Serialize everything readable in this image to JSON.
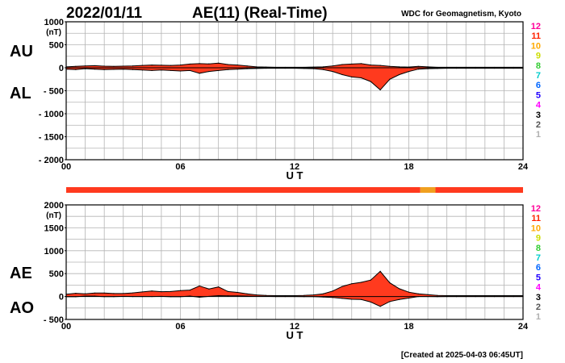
{
  "header": {
    "date": "2022/01/11",
    "title": "AE(11) (Real-Time)",
    "source": "WDC for Geomagnetism, Kyoto"
  },
  "footer": {
    "created": "[Created at 2025-04-03 06:45UT]"
  },
  "colors": {
    "fill": "#ff3a1e",
    "fill_alt": "#ffa030",
    "bar": "#ff3a1e",
    "bar_alt": "#f0a020",
    "grid": "#b4b4b4",
    "stations": [
      "#b0b0b0",
      "#555555",
      "#000000",
      "#ff00ff",
      "#2200ff",
      "#0066ff",
      "#00cccc",
      "#33cc33",
      "#ccdd00",
      "#ffaa00",
      "#ff2200",
      "#ff0099"
    ]
  },
  "station_labels": [
    "1",
    "2",
    "3",
    "4",
    "5",
    "6",
    "7",
    "8",
    "9",
    "10",
    "11",
    "12"
  ],
  "data_bar": {
    "segments": [
      {
        "from": 0,
        "to": 18.6,
        "color": "#ff3a1e"
      },
      {
        "from": 18.6,
        "to": 19.4,
        "color": "#f0a020"
      },
      {
        "from": 19.4,
        "to": 24,
        "color": "#ff3a1e"
      }
    ]
  },
  "chart_data": [
    {
      "type": "area",
      "id": "top",
      "xlabel": "U T",
      "ylabel_unit": "(nT)",
      "upper_label": "AU",
      "lower_label": "AL",
      "xlim": [
        0,
        24
      ],
      "ylim": [
        -2000,
        1000
      ],
      "xticks": [
        0,
        6,
        12,
        18,
        24
      ],
      "xticklabels": [
        "00",
        "06",
        "12",
        "18",
        "24"
      ],
      "yticks": [
        1000,
        500,
        0,
        -500,
        -1000,
        -1500,
        -2000
      ],
      "yticklabels": [
        "1000",
        "500",
        "0",
        "- 500",
        "- 1000",
        "- 1500",
        "- 2000"
      ],
      "grid": true,
      "series": [
        {
          "name": "AU",
          "x": [
            0,
            0.5,
            1,
            1.5,
            2,
            2.5,
            3,
            3.5,
            4,
            4.5,
            5,
            5.5,
            6,
            6.5,
            7,
            7.5,
            8,
            8.5,
            9,
            9.5,
            10,
            10.5,
            11,
            11.5,
            12,
            12.5,
            13,
            13.5,
            14,
            14.5,
            15,
            15.5,
            16,
            16.5,
            17,
            17.5,
            18,
            18.5,
            19,
            19.5,
            20,
            20.5,
            21,
            21.5,
            22,
            22.5,
            23,
            23.5,
            24
          ],
          "y": [
            20,
            30,
            40,
            45,
            35,
            30,
            35,
            40,
            50,
            60,
            55,
            50,
            60,
            80,
            90,
            85,
            100,
            70,
            60,
            40,
            20,
            15,
            10,
            10,
            10,
            10,
            15,
            20,
            40,
            70,
            80,
            90,
            60,
            50,
            30,
            20,
            15,
            30,
            20,
            10,
            10,
            10,
            10,
            10,
            10,
            10,
            10,
            10,
            10
          ]
        },
        {
          "name": "AL",
          "x": [
            0,
            0.5,
            1,
            1.5,
            2,
            2.5,
            3,
            3.5,
            4,
            4.5,
            5,
            5.5,
            6,
            6.5,
            7,
            7.5,
            8,
            8.5,
            9,
            9.5,
            10,
            10.5,
            11,
            11.5,
            12,
            12.5,
            13,
            13.5,
            14,
            14.5,
            15,
            15.5,
            16,
            16.5,
            17,
            17.5,
            18,
            18.5,
            19,
            19.5,
            20,
            20.5,
            21,
            21.5,
            22,
            22.5,
            23,
            23.5,
            24
          ],
          "y": [
            -30,
            -40,
            -20,
            -30,
            -40,
            -35,
            -30,
            -40,
            -50,
            -60,
            -50,
            -60,
            -70,
            -60,
            -120,
            -80,
            -60,
            -40,
            -30,
            -20,
            -15,
            -10,
            -10,
            -10,
            -10,
            -15,
            -20,
            -40,
            -80,
            -150,
            -200,
            -220,
            -300,
            -480,
            -250,
            -150,
            -80,
            -30,
            -20,
            -15,
            -10,
            -10,
            -10,
            -10,
            -10,
            -10,
            -10,
            -10,
            -10
          ]
        }
      ]
    },
    {
      "type": "area",
      "id": "bottom",
      "xlabel": "U T",
      "ylabel_unit": "(nT)",
      "upper_label": "AE",
      "lower_label": "AO",
      "xlim": [
        0,
        24
      ],
      "ylim": [
        -500,
        2000
      ],
      "xticks": [
        0,
        6,
        12,
        18,
        24
      ],
      "xticklabels": [
        "00",
        "06",
        "12",
        "18",
        "24"
      ],
      "yticks": [
        2000,
        1500,
        1000,
        500,
        0,
        -500
      ],
      "yticklabels": [
        "2000",
        "1500",
        "1000",
        "500",
        "0",
        "- 500"
      ],
      "grid": true,
      "series": [
        {
          "name": "AE",
          "x": [
            0,
            0.5,
            1,
            1.5,
            2,
            2.5,
            3,
            3.5,
            4,
            4.5,
            5,
            5.5,
            6,
            6.5,
            7,
            7.5,
            8,
            8.5,
            9,
            9.5,
            10,
            10.5,
            11,
            11.5,
            12,
            12.5,
            13,
            13.5,
            14,
            14.5,
            15,
            15.5,
            16,
            16.5,
            17,
            17.5,
            18,
            18.5,
            19,
            19.5,
            20,
            20.5,
            21,
            21.5,
            22,
            22.5,
            23,
            23.5,
            24
          ],
          "y": [
            50,
            70,
            60,
            75,
            75,
            65,
            65,
            80,
            100,
            120,
            105,
            110,
            130,
            140,
            230,
            165,
            210,
            110,
            90,
            60,
            35,
            25,
            20,
            20,
            20,
            25,
            35,
            60,
            120,
            220,
            280,
            310,
            360,
            550,
            300,
            170,
            95,
            60,
            40,
            25,
            20,
            20,
            20,
            20,
            20,
            20,
            20,
            20,
            20
          ]
        },
        {
          "name": "AO",
          "x": [
            0,
            0.5,
            1,
            1.5,
            2,
            2.5,
            3,
            3.5,
            4,
            4.5,
            5,
            5.5,
            6,
            6.5,
            7,
            7.5,
            8,
            8.5,
            9,
            9.5,
            10,
            10.5,
            11,
            11.5,
            12,
            12.5,
            13,
            13.5,
            14,
            14.5,
            15,
            15.5,
            16,
            16.5,
            17,
            17.5,
            18,
            18.5,
            19,
            19.5,
            20,
            20.5,
            21,
            21.5,
            22,
            22.5,
            23,
            23.5,
            24
          ],
          "y": [
            -5,
            -5,
            10,
            8,
            -3,
            -3,
            3,
            0,
            0,
            0,
            3,
            -5,
            -5,
            10,
            -15,
            3,
            20,
            15,
            15,
            10,
            3,
            3,
            0,
            0,
            0,
            -3,
            -3,
            -10,
            -20,
            -40,
            -60,
            -65,
            -120,
            -215,
            -110,
            -65,
            -33,
            0,
            0,
            -3,
            0,
            0,
            0,
            0,
            0,
            0,
            0,
            0,
            0
          ]
        }
      ]
    }
  ]
}
